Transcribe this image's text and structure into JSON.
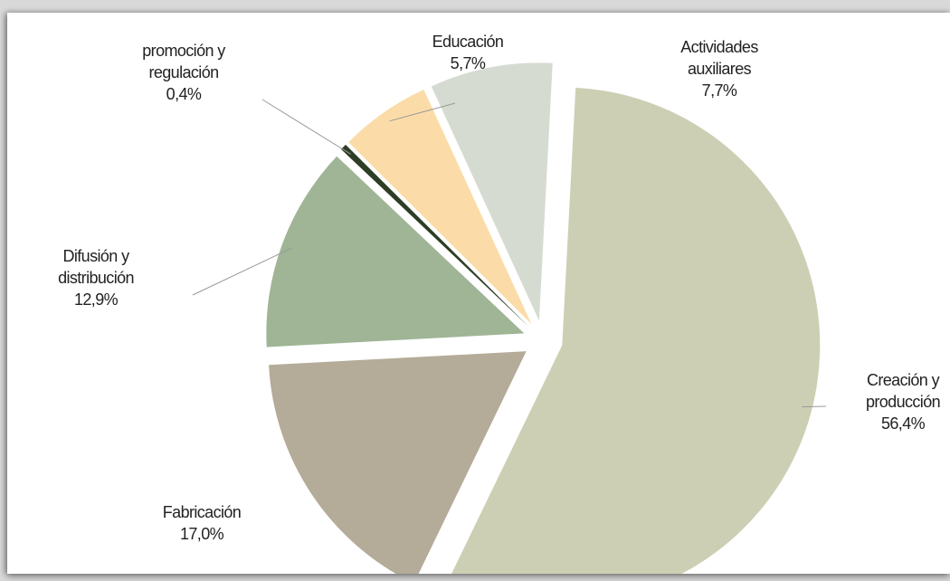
{
  "chart_data": {
    "type": "pie",
    "title": "",
    "slices": [
      {
        "label_lines": [
          "Creación y",
          "producción"
        ],
        "value": 56.4,
        "pct_text": "56,4%",
        "color": "#cdcfb4"
      },
      {
        "label_lines": [
          "Fabricación"
        ],
        "value": 17.0,
        "pct_text": "17,0%",
        "color": "#b4ab98"
      },
      {
        "label_lines": [
          "Difusión y",
          "distribución"
        ],
        "value": 12.9,
        "pct_text": "12,9%",
        "color": "#9fb596"
      },
      {
        "label_lines": [
          "promoción y",
          "regulación"
        ],
        "value": 0.4,
        "pct_text": "0,4%",
        "color": "#2e3d25"
      },
      {
        "label_lines": [
          "Educación"
        ],
        "value": 5.7,
        "pct_text": "5,7%",
        "color": "#fbdca8"
      },
      {
        "label_lines": [
          "Actividades",
          "auxiliares"
        ],
        "value": 7.7,
        "pct_text": "7,7%",
        "color": "#d6dbd2"
      }
    ]
  }
}
